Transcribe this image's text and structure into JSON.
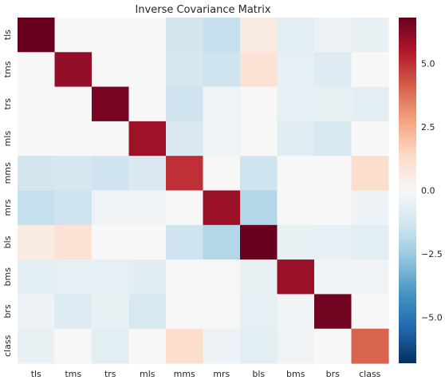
{
  "chart_data": {
    "type": "heatmap",
    "title": "Inverse Covariance Matrix",
    "row_labels": [
      "tls",
      "tms",
      "trs",
      "mls",
      "mms",
      "mrs",
      "bls",
      "bms",
      "brs",
      "class"
    ],
    "col_labels": [
      "tls",
      "tms",
      "trs",
      "mls",
      "mms",
      "mrs",
      "bls",
      "bms",
      "brs",
      "class"
    ],
    "values": [
      [
        7.0,
        0.0,
        0.0,
        0.0,
        -1.3,
        -1.6,
        0.6,
        -0.7,
        -0.4,
        -0.5
      ],
      [
        0.0,
        6.0,
        0.0,
        0.0,
        -1.2,
        -1.4,
        1.0,
        -0.6,
        -0.9,
        0.0
      ],
      [
        0.0,
        0.0,
        6.5,
        0.0,
        -1.4,
        -0.3,
        0.0,
        -0.6,
        -0.5,
        -0.7
      ],
      [
        0.0,
        0.0,
        0.0,
        5.8,
        -1.0,
        -0.3,
        0.0,
        -0.8,
        -1.1,
        0.0
      ],
      [
        -1.3,
        -1.2,
        -1.4,
        -1.0,
        5.0,
        0.0,
        -1.4,
        0.0,
        0.0,
        1.2
      ],
      [
        -1.6,
        -1.4,
        -0.3,
        -0.3,
        0.0,
        5.9,
        -2.0,
        0.0,
        0.0,
        -0.4
      ],
      [
        0.6,
        1.0,
        0.0,
        0.0,
        -1.4,
        -2.0,
        7.2,
        -0.5,
        -0.6,
        -0.7
      ],
      [
        -0.7,
        -0.6,
        -0.6,
        -0.8,
        0.0,
        0.0,
        -0.5,
        5.9,
        -0.2,
        -0.3
      ],
      [
        -0.4,
        -0.9,
        -0.5,
        -1.1,
        0.0,
        0.0,
        -0.6,
        -0.2,
        6.6,
        0.0
      ],
      [
        -0.5,
        0.0,
        -0.7,
        0.0,
        1.2,
        -0.4,
        -0.7,
        -0.3,
        0.0,
        4.0
      ]
    ],
    "colormap": "RdBu_r",
    "vmin": -6.8,
    "vmax": 6.8,
    "colorbar_ticks": [
      5.0,
      2.5,
      0.0,
      -2.5,
      -5.0
    ],
    "colorbar_tick_labels": [
      "5.0",
      "2.5",
      "0.0",
      "−2.5",
      "−5.0"
    ],
    "grid": false
  }
}
